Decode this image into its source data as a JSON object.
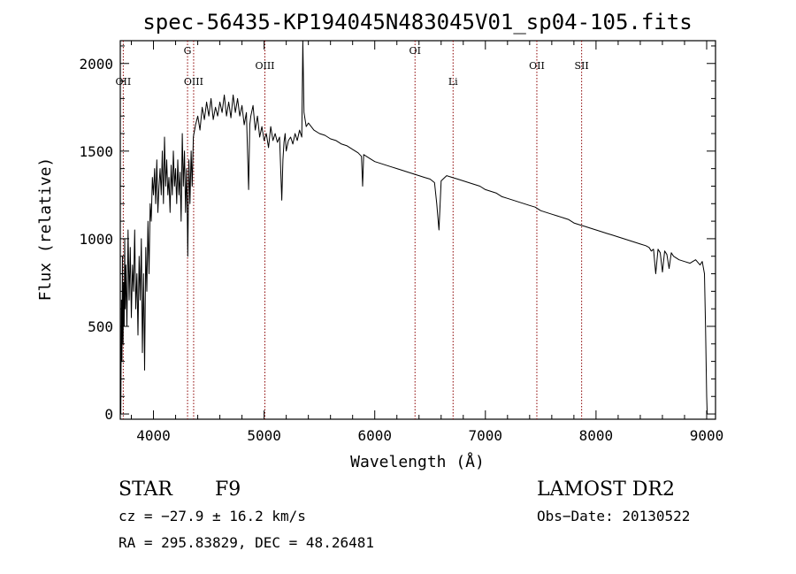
{
  "chart_data": {
    "type": "line",
    "title": "spec-56435-KP194045N483045V01_sp04-105.fits",
    "xlabel": "Wavelength (Å)",
    "ylabel": "Flux (relative)",
    "xlim": [
      3700,
      9080
    ],
    "ylim": [
      -30,
      2130
    ],
    "xticks": [
      4000,
      5000,
      6000,
      7000,
      8000,
      9000
    ],
    "yticks": [
      0,
      500,
      1000,
      1500,
      2000
    ],
    "grid": false,
    "line_color": "#000000",
    "marker_color": "#8b0000",
    "lines": [
      {
        "name": "OII",
        "x": 3727,
        "row": 2
      },
      {
        "name": "G",
        "x": 4308,
        "row": 1
      },
      {
        "name": "OIII",
        "x": 4363,
        "row": 2
      },
      {
        "name": "OIII",
        "x": 5007,
        "row": 1.5
      },
      {
        "name": "OI",
        "x": 6364,
        "row": 1
      },
      {
        "name": "Li",
        "x": 6708,
        "row": 2
      },
      {
        "name": "OII",
        "x": 7465,
        "row": 1.5
      },
      {
        "name": "SII",
        "x": 7870,
        "row": 1.5
      }
    ],
    "series": [
      {
        "x": [
          3705,
          3710,
          3715,
          3720,
          3725,
          3730,
          3735,
          3740,
          3745,
          3750,
          3760,
          3770,
          3780,
          3790,
          3800,
          3810,
          3820,
          3830,
          3840,
          3850,
          3860,
          3870,
          3880,
          3890,
          3900,
          3910,
          3920,
          3930,
          3940,
          3950,
          3960,
          3970,
          3980,
          3990,
          4000,
          4010,
          4020,
          4030,
          4040,
          4050,
          4060,
          4070,
          4080,
          4090,
          4100,
          4110,
          4120,
          4130,
          4140,
          4150,
          4160,
          4170,
          4180,
          4190,
          4200,
          4210,
          4220,
          4230,
          4240,
          4250,
          4260,
          4270,
          4280,
          4290,
          4300,
          4310,
          4320,
          4330,
          4340,
          4350,
          4360,
          4380,
          4400,
          4420,
          4440,
          4460,
          4480,
          4500,
          4520,
          4540,
          4560,
          4580,
          4600,
          4620,
          4640,
          4660,
          4680,
          4700,
          4720,
          4740,
          4760,
          4780,
          4800,
          4820,
          4840,
          4860,
          4870,
          4880,
          4900,
          4920,
          4940,
          4960,
          4980,
          5000,
          5020,
          5040,
          5060,
          5080,
          5100,
          5120,
          5140,
          5160,
          5170,
          5180,
          5190,
          5200,
          5220,
          5240,
          5260,
          5280,
          5300,
          5320,
          5340,
          5350,
          5360,
          5380,
          5400,
          5450,
          5500,
          5550,
          5600,
          5650,
          5700,
          5750,
          5800,
          5850,
          5880,
          5890,
          5900,
          5950,
          6000,
          6050,
          6100,
          6150,
          6200,
          6250,
          6300,
          6350,
          6400,
          6450,
          6500,
          6540,
          6560,
          6580,
          6600,
          6650,
          6700,
          6750,
          6800,
          6850,
          6900,
          6950,
          7000,
          7050,
          7100,
          7150,
          7200,
          7250,
          7300,
          7350,
          7400,
          7450,
          7500,
          7550,
          7600,
          7650,
          7700,
          7750,
          7800,
          7850,
          7900,
          7950,
          8000,
          8050,
          8100,
          8150,
          8200,
          8250,
          8300,
          8350,
          8400,
          8450,
          8480,
          8500,
          8520,
          8540,
          8560,
          8580,
          8600,
          8620,
          8640,
          8660,
          8680,
          8700,
          8750,
          8800,
          8850,
          8900,
          8940,
          8960,
          8980,
          8990,
          9000,
          9005
        ],
        "y": [
          0,
          650,
          300,
          900,
          400,
          750,
          500,
          1000,
          600,
          850,
          500,
          1050,
          650,
          950,
          550,
          850,
          700,
          1050,
          600,
          800,
          450,
          900,
          650,
          1000,
          350,
          800,
          250,
          950,
          700,
          1100,
          800,
          1200,
          1100,
          1350,
          1250,
          1400,
          1200,
          1450,
          1150,
          1300,
          1400,
          1250,
          1500,
          1200,
          1580,
          1300,
          1450,
          1250,
          1350,
          1150,
          1420,
          1250,
          1500,
          1300,
          1400,
          1200,
          1450,
          1250,
          1380,
          1100,
          1600,
          1300,
          1500,
          1150,
          1400,
          900,
          1450,
          1200,
          1500,
          1300,
          1580,
          1650,
          1700,
          1620,
          1750,
          1680,
          1780,
          1700,
          1800,
          1680,
          1750,
          1700,
          1780,
          1720,
          1820,
          1700,
          1780,
          1690,
          1820,
          1720,
          1800,
          1700,
          1760,
          1650,
          1720,
          1280,
          1650,
          1700,
          1760,
          1620,
          1700,
          1580,
          1640,
          1560,
          1600,
          1520,
          1640,
          1560,
          1600,
          1550,
          1580,
          1220,
          1450,
          1550,
          1600,
          1500,
          1560,
          1580,
          1540,
          1600,
          1560,
          1620,
          1580,
          2130,
          1720,
          1640,
          1660,
          1620,
          1600,
          1590,
          1570,
          1560,
          1540,
          1530,
          1510,
          1490,
          1470,
          1300,
          1480,
          1460,
          1440,
          1430,
          1420,
          1410,
          1400,
          1390,
          1380,
          1370,
          1360,
          1350,
          1340,
          1320,
          1200,
          1050,
          1330,
          1360,
          1350,
          1340,
          1330,
          1320,
          1310,
          1300,
          1280,
          1270,
          1260,
          1240,
          1230,
          1220,
          1210,
          1200,
          1190,
          1180,
          1160,
          1150,
          1140,
          1130,
          1120,
          1110,
          1090,
          1080,
          1070,
          1060,
          1050,
          1040,
          1030,
          1020,
          1010,
          1000,
          990,
          980,
          970,
          960,
          950,
          930,
          940,
          800,
          940,
          920,
          810,
          930,
          910,
          830,
          920,
          900,
          880,
          870,
          860,
          880,
          850,
          870,
          800,
          500,
          100,
          0
        ]
      }
    ]
  },
  "footer": {
    "star_label": "STAR",
    "spectral_type": "F9",
    "survey": "LAMOST DR2",
    "cz": "cz = −27.9 ± 16.2 km/s",
    "obs_date": "Obs−Date: 20130522",
    "coords": "RA = 295.83829, DEC =  48.26481"
  }
}
